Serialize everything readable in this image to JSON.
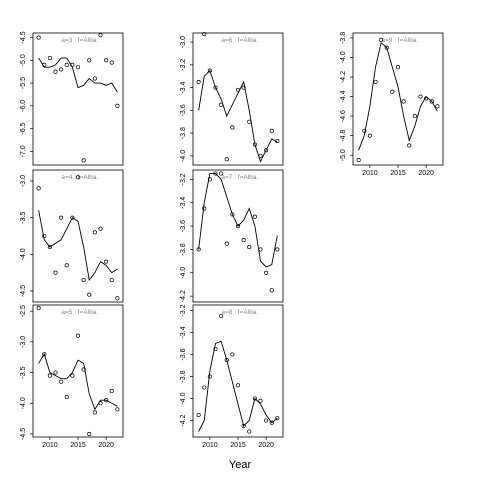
{
  "x_label": "Year",
  "chart_data": [
    {
      "type": "scatter",
      "title": "a=3  :  f=Alba.",
      "x": [
        2008,
        2009,
        2010,
        2011,
        2012,
        2013,
        2014,
        2015,
        2016,
        2017,
        2018,
        2019,
        2020,
        2021,
        2022
      ],
      "xlim": [
        2007,
        2023
      ],
      "ylim": [
        -7.3,
        -4.4
      ],
      "yticks": [
        -4.5,
        {
          "value": -5,
          "label": "-5.0"
        },
        -5.5,
        {
          "value": -6,
          "label": "-6.0"
        },
        -6.5,
        {
          "value": -7,
          "label": "-7.0"
        }
      ],
      "series": [
        {
          "style": "points",
          "color": "#000000",
          "values": [
            -4.5,
            -5.1,
            -4.95,
            -5.25,
            -5.2,
            -5.1,
            -5.1,
            -5.15,
            -7.2,
            -5.0,
            -5.4,
            -4.45,
            -5.0,
            -5.05,
            -6.0
          ]
        },
        {
          "style": "line",
          "color": "#000000",
          "values": [
            -4.95,
            -5.15,
            -5.15,
            -5.1,
            -4.95,
            -4.95,
            -5.15,
            -5.6,
            -5.55,
            -5.4,
            -5.5,
            -5.5,
            -5.55,
            -5.5,
            -5.7
          ]
        }
      ]
    },
    {
      "type": "scatter",
      "title": "a=4  :  f=Alba.",
      "x": [
        2008,
        2009,
        2010,
        2011,
        2012,
        2013,
        2014,
        2015,
        2016,
        2017,
        2018,
        2019,
        2020,
        2021,
        2022
      ],
      "xlim": [
        2007,
        2023
      ],
      "ylim": [
        -4.65,
        -2.85
      ],
      "yticks": [
        {
          "value": -3,
          "label": "-3.0"
        },
        -3.5,
        {
          "value": -4,
          "label": "-4.0"
        },
        -4.5
      ],
      "series": [
        {
          "style": "points",
          "color": "#000000",
          "values": [
            -3.1,
            -3.75,
            -3.9,
            -4.25,
            -3.5,
            -4.15,
            -3.5,
            -2.95,
            -4.35,
            -4.55,
            -3.7,
            -3.65,
            -4.1,
            -4.35,
            -4.6
          ]
        },
        {
          "style": "line",
          "color": "#000000",
          "values": [
            -3.4,
            -3.8,
            -3.9,
            -3.85,
            -3.8,
            -3.65,
            -3.5,
            -3.55,
            -3.9,
            -4.35,
            -4.25,
            -4.1,
            -4.15,
            -4.25,
            -4.2
          ]
        }
      ]
    },
    {
      "type": "scatter",
      "title": "a=5  :  f=Alba.",
      "x": [
        2008,
        2009,
        2010,
        2011,
        2012,
        2013,
        2014,
        2015,
        2016,
        2017,
        2018,
        2019,
        2020,
        2021,
        2022
      ],
      "xlim": [
        2007,
        2023
      ],
      "xticks": [
        2010,
        2015,
        2020
      ],
      "ylim": [
        -4.55,
        -2.4
      ],
      "yticks": [
        -2.5,
        {
          "value": -3,
          "label": "-3.0"
        },
        -3.5,
        {
          "value": -4,
          "label": "-4.0"
        },
        -4.5
      ],
      "series": [
        {
          "style": "points",
          "color": "#000000",
          "values": [
            -2.45,
            -3.2,
            -3.55,
            -3.5,
            -3.65,
            -3.9,
            -3.55,
            -2.9,
            -3.45,
            -4.5,
            -4.15,
            -4.0,
            -3.95,
            -3.8,
            -4.1
          ]
        },
        {
          "style": "line",
          "color": "#000000",
          "values": [
            -3.35,
            -3.2,
            -3.5,
            -3.55,
            -3.6,
            -3.6,
            -3.5,
            -3.3,
            -3.35,
            -3.85,
            -4.1,
            -3.95,
            -3.95,
            -4.0,
            -4.05
          ]
        }
      ]
    },
    {
      "type": "scatter",
      "title": "a=6  :  f=Alba.",
      "x": [
        2008,
        2009,
        2010,
        2011,
        2012,
        2013,
        2014,
        2015,
        2016,
        2017,
        2018,
        2019,
        2020,
        2021,
        2022
      ],
      "xlim": [
        2007,
        2023
      ],
      "ylim": [
        -4.08,
        -2.92
      ],
      "yticks": [
        {
          "value": -3,
          "label": "-3.0"
        },
        -3.2,
        -3.4,
        -3.6,
        -3.8,
        {
          "value": -4,
          "label": "-4.0"
        }
      ],
      "series": [
        {
          "style": "points",
          "color": "#000000",
          "values": [
            -3.35,
            -2.93,
            -3.25,
            -3.4,
            -3.55,
            -4.03,
            -3.75,
            -3.42,
            -3.4,
            -3.7,
            -3.9,
            -4.0,
            -3.95,
            -3.78,
            -3.87
          ]
        },
        {
          "style": "line",
          "color": "#000000",
          "values": [
            -3.6,
            -3.3,
            -3.25,
            -3.4,
            -3.5,
            -3.65,
            -3.55,
            -3.45,
            -3.35,
            -3.6,
            -3.9,
            -4.05,
            -3.95,
            -3.85,
            -3.88
          ]
        }
      ]
    },
    {
      "type": "scatter",
      "title": "a=7  :  f=Alba.",
      "x": [
        2008,
        2009,
        2010,
        2011,
        2012,
        2013,
        2014,
        2015,
        2016,
        2017,
        2018,
        2019,
        2020,
        2021,
        2022
      ],
      "xlim": [
        2007,
        2023
      ],
      "ylim": [
        -4.25,
        -3.12
      ],
      "yticks": [
        -3.2,
        -3.4,
        -3.6,
        -3.8,
        {
          "value": -4,
          "label": "-4.0"
        },
        -4.2
      ],
      "series": [
        {
          "style": "points",
          "color": "#000000",
          "values": [
            -3.8,
            -3.45,
            -3.2,
            -3.15,
            -3.15,
            -3.75,
            -3.5,
            -3.6,
            -3.72,
            -3.78,
            -3.52,
            -3.8,
            -4.0,
            -4.15,
            -3.8
          ]
        },
        {
          "style": "line",
          "color": "#000000",
          "values": [
            -3.8,
            -3.4,
            -3.15,
            -3.15,
            -3.2,
            -3.35,
            -3.5,
            -3.6,
            -3.55,
            -3.45,
            -3.6,
            -3.9,
            -3.95,
            -3.93,
            -3.68
          ]
        }
      ]
    },
    {
      "type": "scatter",
      "title": "a=8  :  f=Alba.",
      "x": [
        2008,
        2009,
        2010,
        2011,
        2012,
        2013,
        2014,
        2015,
        2016,
        2017,
        2018,
        2019,
        2020,
        2021,
        2022
      ],
      "xlim": [
        2007,
        2023
      ],
      "xticks": [
        2010,
        2015,
        2020
      ],
      "ylim": [
        -4.35,
        -3.15
      ],
      "yticks": [
        -3.2,
        -3.4,
        -3.6,
        -3.8,
        {
          "value": -4,
          "label": "-4.0"
        },
        -4.2
      ],
      "series": [
        {
          "style": "points",
          "color": "#000000",
          "values": [
            -4.15,
            -3.9,
            -3.8,
            -3.55,
            -3.25,
            -3.65,
            -3.6,
            -3.88,
            -4.25,
            -4.3,
            -4.0,
            -4.02,
            -4.2,
            -4.22,
            -4.18
          ]
        },
        {
          "style": "line",
          "color": "#000000",
          "values": [
            -4.3,
            -4.2,
            -3.75,
            -3.5,
            -3.48,
            -3.65,
            -3.85,
            -4.05,
            -4.25,
            -4.2,
            -4.0,
            -4.05,
            -4.15,
            -4.22,
            -4.18
          ]
        }
      ]
    },
    {
      "type": "scatter",
      "title": "a=9  :  f=Alba.",
      "x": [
        2008,
        2009,
        2010,
        2011,
        2012,
        2013,
        2014,
        2015,
        2016,
        2017,
        2018,
        2019,
        2020,
        2021,
        2022
      ],
      "xlim": [
        2007,
        2023
      ],
      "xticks": [
        2010,
        2015,
        2020
      ],
      "ylim": [
        -5.1,
        -3.75
      ],
      "yticks": [
        -3.8,
        {
          "value": -4,
          "label": "-4.0"
        },
        -4.2,
        -4.4,
        -4.6,
        -4.8,
        {
          "value": -5,
          "label": "-5.0"
        }
      ],
      "series": [
        {
          "style": "points",
          "color": "#000000",
          "values": [
            -5.05,
            -4.75,
            -4.8,
            -4.25,
            -3.82,
            -3.9,
            -4.35,
            -4.1,
            -4.45,
            -4.9,
            -4.6,
            -4.4,
            -4.42,
            -4.45,
            -4.5
          ]
        },
        {
          "style": "line",
          "color": "#000000",
          "values": [
            -4.95,
            -4.8,
            -4.5,
            -4.1,
            -3.85,
            -3.9,
            -4.1,
            -4.3,
            -4.6,
            -4.85,
            -4.7,
            -4.5,
            -4.4,
            -4.45,
            -4.55
          ]
        }
      ]
    }
  ]
}
